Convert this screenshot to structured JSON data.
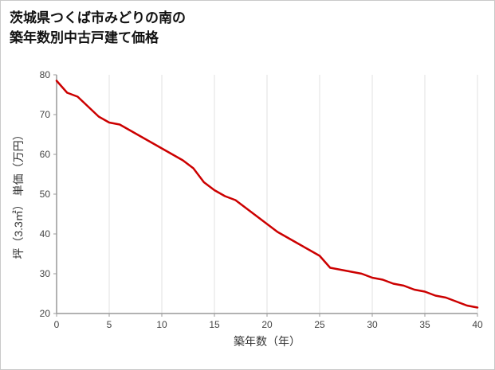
{
  "title": {
    "line1": "茨城県つくば市みどりの南の",
    "line2": "築年数別中古戸建て価格"
  },
  "chart_data": {
    "type": "line",
    "title": "茨城県つくば市みどりの南の 築年数別中古戸建て価格",
    "xlabel": "築年数（年）",
    "ylabel": "坪（3.3㎡） 単価（万円）",
    "xlim": [
      0,
      40
    ],
    "ylim": [
      20,
      80
    ],
    "xticks": [
      0,
      5,
      10,
      15,
      20,
      25,
      30,
      35,
      40
    ],
    "yticks": [
      20,
      30,
      40,
      50,
      60,
      70,
      80
    ],
    "grid": "vertical-only",
    "legend": "none",
    "x": [
      0,
      1,
      2,
      3,
      4,
      5,
      6,
      7,
      8,
      9,
      10,
      11,
      12,
      13,
      14,
      15,
      16,
      17,
      18,
      19,
      20,
      21,
      22,
      23,
      24,
      25,
      26,
      27,
      28,
      29,
      30,
      31,
      32,
      33,
      34,
      35,
      36,
      37,
      38,
      39,
      40
    ],
    "series": [
      {
        "name": "坪単価（万円）",
        "color": "#cc0000",
        "values": [
          78.5,
          75.5,
          74.5,
          72,
          69.5,
          68,
          67.5,
          66,
          64.5,
          63,
          61.5,
          60,
          58.5,
          56.5,
          53,
          51,
          49.5,
          48.5,
          46.5,
          44.5,
          42.5,
          40.5,
          39,
          37.5,
          36,
          34.5,
          31.5,
          31,
          30.5,
          30,
          29,
          28.5,
          27.5,
          27,
          26,
          25.5,
          24.5,
          24,
          23,
          22,
          21.5
        ]
      }
    ]
  },
  "colors": {
    "line": "#cc0000",
    "grid": "#e2e2e2",
    "axis": "#999999",
    "tick_text": "#444444",
    "label_text": "#333333",
    "border": "#c9c9c9"
  }
}
